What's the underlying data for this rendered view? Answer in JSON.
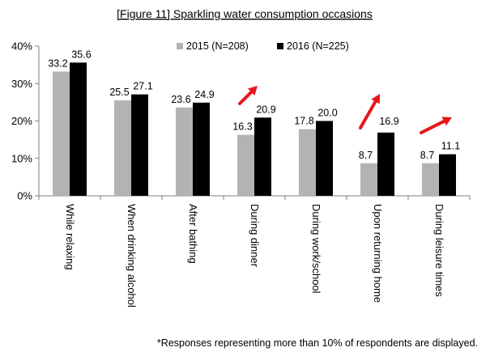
{
  "chart_data": {
    "type": "bar",
    "title": "[Figure 11] Sparkling water consumption occasions",
    "categories": [
      "While relaxing",
      "When drinking alcohol",
      "After bathing",
      "During dinner",
      "During work/school",
      "Upon returning home",
      "During leisure times"
    ],
    "series": [
      {
        "name": "2015 (N=208)",
        "color": "#b3b3b3",
        "values": [
          33.2,
          25.5,
          23.6,
          16.3,
          17.8,
          8.7,
          8.7
        ]
      },
      {
        "name": "2016 (N=225)",
        "color": "#000000",
        "values": [
          35.6,
          27.1,
          24.9,
          20.9,
          20.0,
          16.9,
          11.1
        ]
      }
    ],
    "ylim": [
      0,
      40
    ],
    "yticks": [
      "0%",
      "10%",
      "20%",
      "30%",
      "40%"
    ],
    "ytick_values": [
      0,
      10,
      20,
      30,
      40
    ],
    "grid": false,
    "legend_position": "top-right",
    "annotations": {
      "arrow_color": "#e8161b",
      "arrow_icon": "red-up-arrow-icon",
      "arrow_categories": [
        "During dinner",
        "Upon returning home",
        "During leisure times"
      ]
    },
    "footnote": "*Responses representing more than 10% of respondents are displayed."
  }
}
